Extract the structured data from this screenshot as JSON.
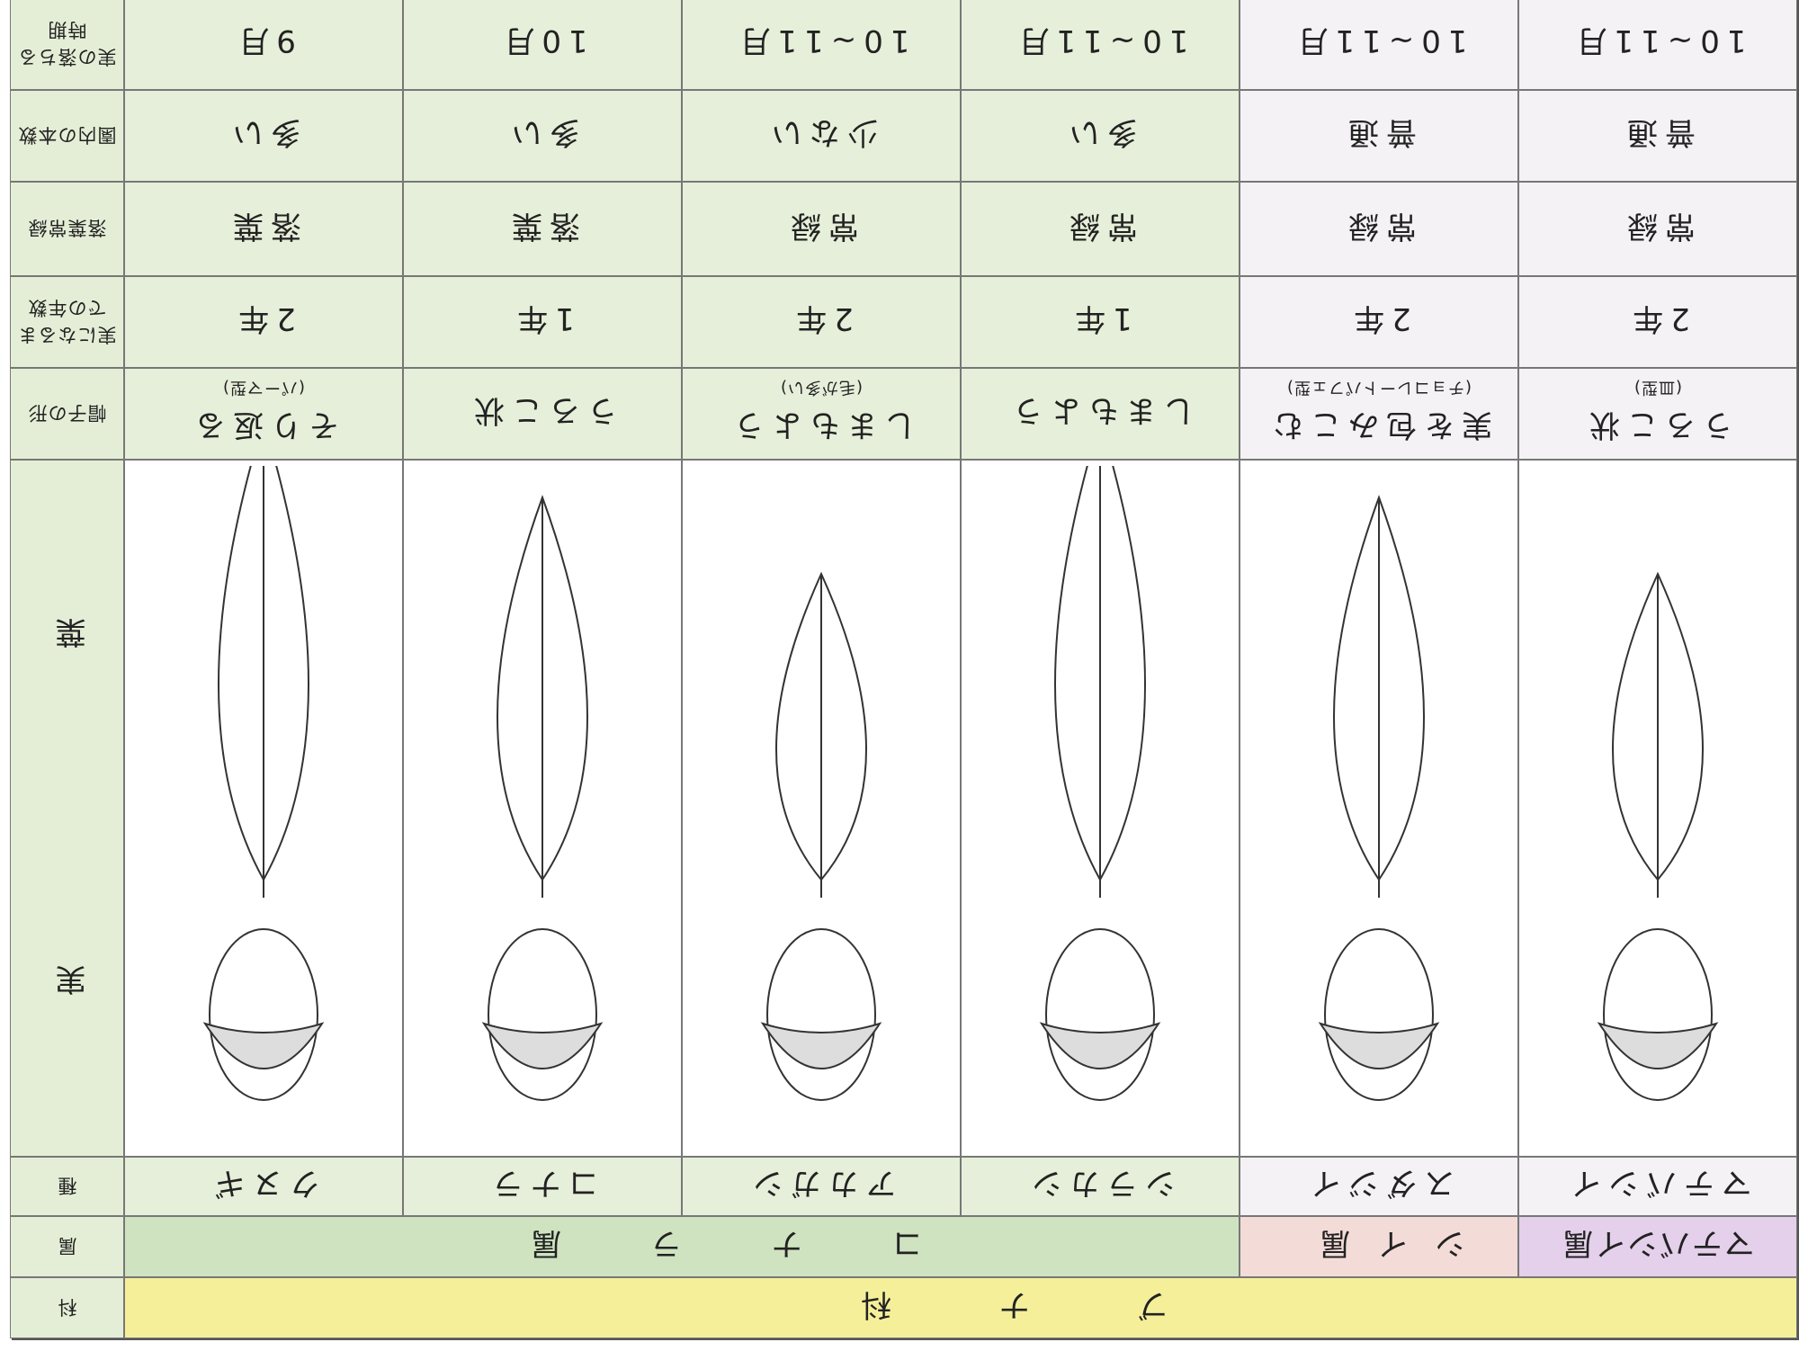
{
  "family": {
    "header": "科",
    "name": "ブナ科"
  },
  "genera": {
    "header": "属",
    "items": [
      "マテバシイ属",
      "シイ属",
      "コナラ属"
    ]
  },
  "row_headers": {
    "species": "種",
    "fruit": "実",
    "leaf": "葉",
    "cap_shape": "帽子の形",
    "years": "実になるまでの年数",
    "leaf_type": "落葉常緑",
    "count": "園内の本数",
    "season": "実の落ちる時期"
  },
  "species": [
    {
      "name": "マテバシイ",
      "cap": "うろこ状",
      "cap_note": "(皿型)",
      "years": "2年",
      "leaf_type": "常緑",
      "count": "普通",
      "season": "10~11月"
    },
    {
      "name": "スダジイ",
      "cap": "実を包みこむ",
      "cap_note": "(チョコレートパフェ型)",
      "years": "2年",
      "leaf_type": "常緑",
      "count": "普通",
      "season": "10~11月"
    },
    {
      "name": "シラカシ",
      "cap": "しまもよう",
      "years": "1年",
      "leaf_type": "常緑",
      "count": "多い",
      "season": "10~11月"
    },
    {
      "name": "アカガシ",
      "cap": "しまもよう",
      "cap_note": "(毛が多い)",
      "years": "2年",
      "leaf_type": "常緑",
      "count": "少ない",
      "season": "10~11月"
    },
    {
      "name": "コナラ",
      "cap": "うろこ状",
      "years": "1年",
      "leaf_type": "落葉",
      "count": "多い",
      "season": "10月"
    },
    {
      "name": "クヌギ",
      "cap": "そり返る",
      "cap_note": "(パーマ型)",
      "years": "2年",
      "leaf_type": "落葉",
      "count": "多い",
      "season": "9月"
    }
  ]
}
